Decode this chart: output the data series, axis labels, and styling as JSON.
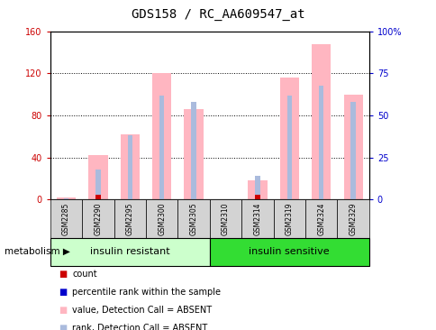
{
  "title": "GDS158 / RC_AA609547_at",
  "samples": [
    "GSM2285",
    "GSM2290",
    "GSM2295",
    "GSM2300",
    "GSM2305",
    "GSM2310",
    "GSM2314",
    "GSM2319",
    "GSM2324",
    "GSM2329"
  ],
  "groups": [
    {
      "label": "insulin resistant",
      "n": 5,
      "color": "#ccffcc"
    },
    {
      "label": "insulin sensitive",
      "n": 5,
      "color": "#33dd33"
    }
  ],
  "group_label": "metabolism",
  "pink_bar_heights": [
    2,
    42,
    62,
    120,
    86,
    0,
    18,
    116,
    148,
    100
  ],
  "blue_marker_values": [
    1,
    18,
    38,
    62,
    58,
    0,
    14,
    62,
    68,
    58
  ],
  "red_marker_values": [
    0,
    2,
    0,
    0,
    0,
    0,
    2,
    0,
    0,
    0
  ],
  "ylim_left": [
    0,
    160
  ],
  "ylim_right": [
    0,
    100
  ],
  "yticks_left": [
    0,
    40,
    80,
    120,
    160
  ],
  "yticks_right": [
    0,
    25,
    50,
    75,
    100
  ],
  "yticklabels_left": [
    "0",
    "40",
    "80",
    "120",
    "160"
  ],
  "yticklabels_right": [
    "0",
    "25",
    "50",
    "75",
    "100%"
  ],
  "pink_color": "#ffb6c1",
  "blue_color": "#aabbdd",
  "red_color": "#cc0000",
  "left_axis_color": "#cc0000",
  "right_axis_color": "#0000cc",
  "legend_items": [
    {
      "color": "#cc0000",
      "label": "count"
    },
    {
      "color": "#0000cc",
      "label": "percentile rank within the sample"
    },
    {
      "color": "#ffb6c1",
      "label": "value, Detection Call = ABSENT"
    },
    {
      "color": "#aabbdd",
      "label": "rank, Detection Call = ABSENT"
    }
  ]
}
